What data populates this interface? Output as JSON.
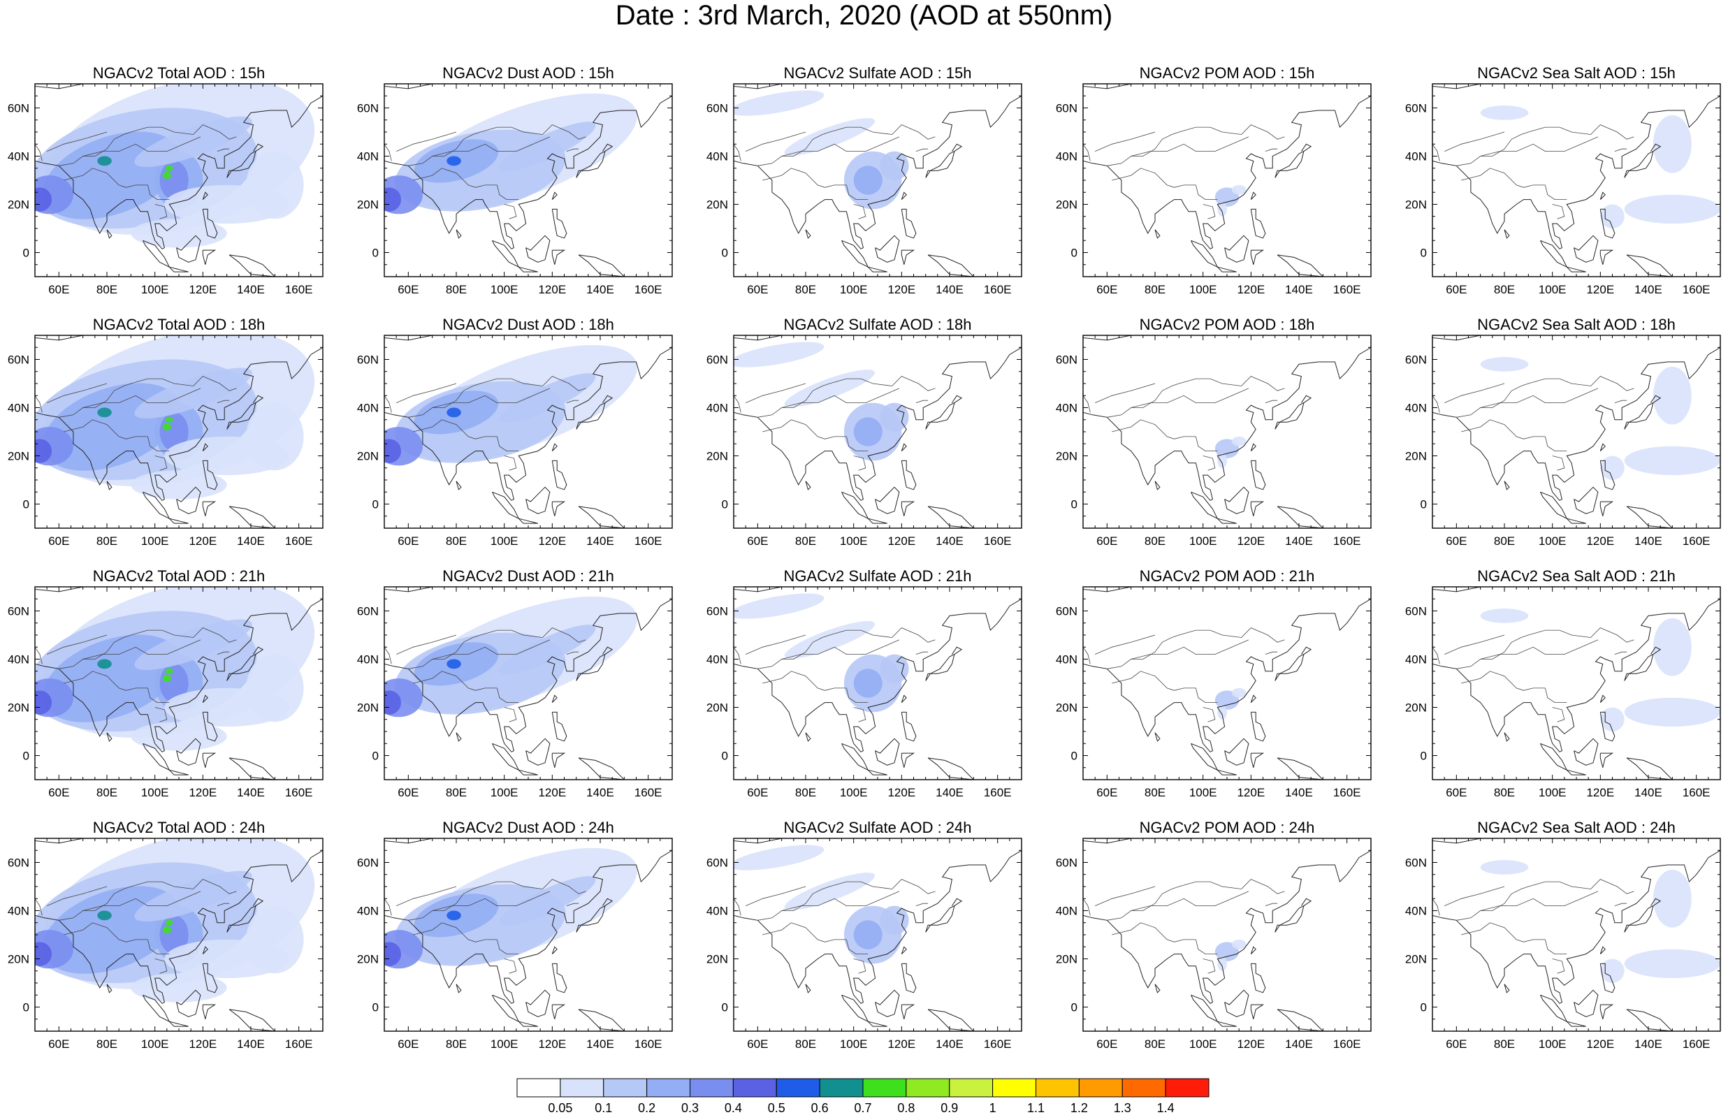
{
  "title": "Date : 3rd March, 2020 (AOD at 550nm)",
  "map_extent": {
    "lon": [
      50,
      170
    ],
    "lat": [
      -10,
      70
    ]
  },
  "lon_ticks": [
    "60E",
    "80E",
    "100E",
    "120E",
    "140E",
    "160E"
  ],
  "lat_ticks": [
    "60N",
    "40N",
    "20N",
    "0"
  ],
  "colorbar": {
    "levels": [
      "0.05",
      "0.1",
      "0.2",
      "0.3",
      "0.4",
      "0.5",
      "0.6",
      "0.7",
      "0.8",
      "0.9",
      "1",
      "1.1",
      "1.2",
      "1.3",
      "1.4"
    ],
    "colors": [
      "#ffffff",
      "#d8e2fb",
      "#b6c8f6",
      "#93aef4",
      "#7a8ef0",
      "#5a62e3",
      "#1f5de8",
      "#128f8f",
      "#3ee01e",
      "#8fea22",
      "#c9f13d",
      "#ffff00",
      "#ffc400",
      "#ff9b00",
      "#ff6a00",
      "#ff1d0a"
    ]
  },
  "panels": [
    {
      "title": "NGACv2 Total AOD : 15h",
      "type": "total"
    },
    {
      "title": "NGACv2 Dust AOD : 15h",
      "type": "dust"
    },
    {
      "title": "NGACv2 Sulfate AOD : 15h",
      "type": "sulfate"
    },
    {
      "title": "NGACv2 POM AOD : 15h",
      "type": "pom"
    },
    {
      "title": "NGACv2 Sea Salt AOD : 15h",
      "type": "seasalt"
    },
    {
      "title": "NGACv2 Total AOD : 18h",
      "type": "total"
    },
    {
      "title": "NGACv2 Dust AOD : 18h",
      "type": "dust"
    },
    {
      "title": "NGACv2 Sulfate AOD : 18h",
      "type": "sulfate"
    },
    {
      "title": "NGACv2 POM AOD : 18h",
      "type": "pom"
    },
    {
      "title": "NGACv2 Sea Salt AOD : 18h",
      "type": "seasalt"
    },
    {
      "title": "NGACv2 Total AOD : 21h",
      "type": "total"
    },
    {
      "title": "NGACv2 Dust AOD : 21h",
      "type": "dust"
    },
    {
      "title": "NGACv2 Sulfate AOD : 21h",
      "type": "sulfate"
    },
    {
      "title": "NGACv2 POM AOD : 21h",
      "type": "pom"
    },
    {
      "title": "NGACv2 Sea Salt AOD : 21h",
      "type": "seasalt"
    },
    {
      "title": "NGACv2 Total AOD : 24h",
      "type": "total"
    },
    {
      "title": "NGACv2 Dust AOD : 24h",
      "type": "dust"
    },
    {
      "title": "NGACv2 Sulfate AOD : 24h",
      "type": "sulfate"
    },
    {
      "title": "NGACv2 POM AOD : 24h",
      "type": "pom"
    },
    {
      "title": "NGACv2 Sea Salt  AOD : 24h",
      "type": "seasalt"
    }
  ]
}
